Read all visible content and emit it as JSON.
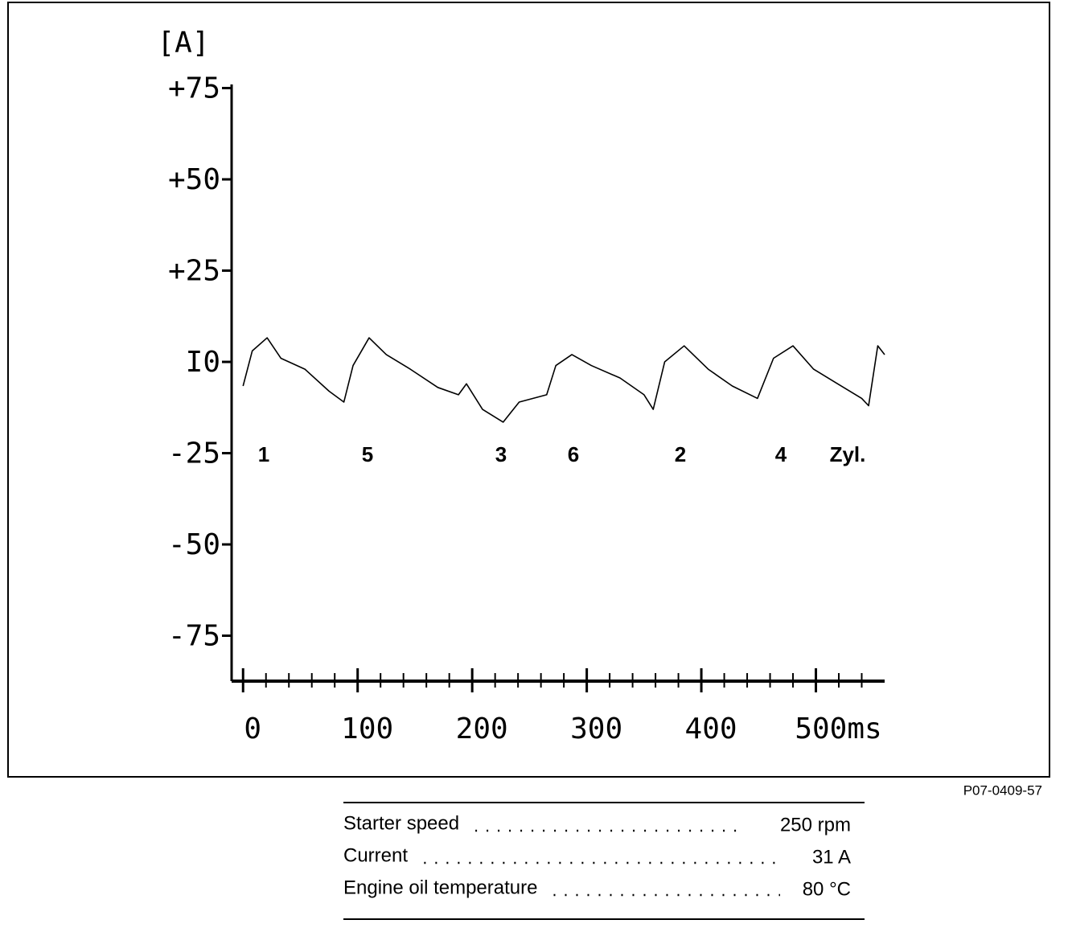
{
  "chart_data": {
    "type": "line",
    "y_label": "[A]",
    "x": [
      0,
      8,
      21,
      33,
      54,
      75,
      88,
      96,
      110,
      125,
      146,
      170,
      188,
      195,
      209,
      227,
      241,
      265,
      273,
      287,
      304,
      329,
      350,
      358,
      368,
      385,
      406,
      427,
      449,
      463,
      480,
      498,
      519,
      540,
      546,
      554,
      560
    ],
    "values": [
      -6.6,
      3,
      6.6,
      1,
      -2,
      -8,
      -11,
      -1,
      6.6,
      2,
      -2,
      -7,
      -9,
      -6,
      -13,
      -16.5,
      -11,
      -9,
      -1,
      2,
      -1,
      -4.4,
      -9,
      -13,
      0,
      4.4,
      -2,
      -6.6,
      -10,
      1,
      4.4,
      -2,
      -6,
      -10,
      -12,
      4.4,
      2
    ],
    "color": "#000000",
    "xlim": [
      -10,
      560
    ],
    "ylim": [
      -87,
      76
    ],
    "yticks": [
      {
        "value": 75,
        "label": "+75"
      },
      {
        "value": 50,
        "label": "+50"
      },
      {
        "value": 25,
        "label": "+25"
      },
      {
        "value": 0,
        "label": "I0"
      },
      {
        "value": -25,
        "label": "-25"
      },
      {
        "value": -50,
        "label": "-50"
      },
      {
        "value": -75,
        "label": "-75"
      }
    ],
    "xticks": [
      0,
      100,
      200,
      300,
      400,
      {
        "value": 500,
        "label": "500ms"
      }
    ],
    "xminorticks": [
      20,
      40,
      60,
      80,
      120,
      140,
      160,
      180,
      220,
      240,
      260,
      280,
      320,
      340,
      360,
      380,
      420,
      440,
      460,
      480,
      520,
      540
    ],
    "annotations": [
      "1",
      "5",
      "3",
      "6",
      "2",
      "4",
      "Zyl."
    ]
  },
  "figure_id": "P07-0409-57",
  "table": {
    "rows": [
      [
        "Starter speed",
        "250 rpm"
      ],
      [
        "Current",
        "31 A"
      ],
      [
        "Engine oil temperature",
        "80 °C"
      ]
    ]
  }
}
